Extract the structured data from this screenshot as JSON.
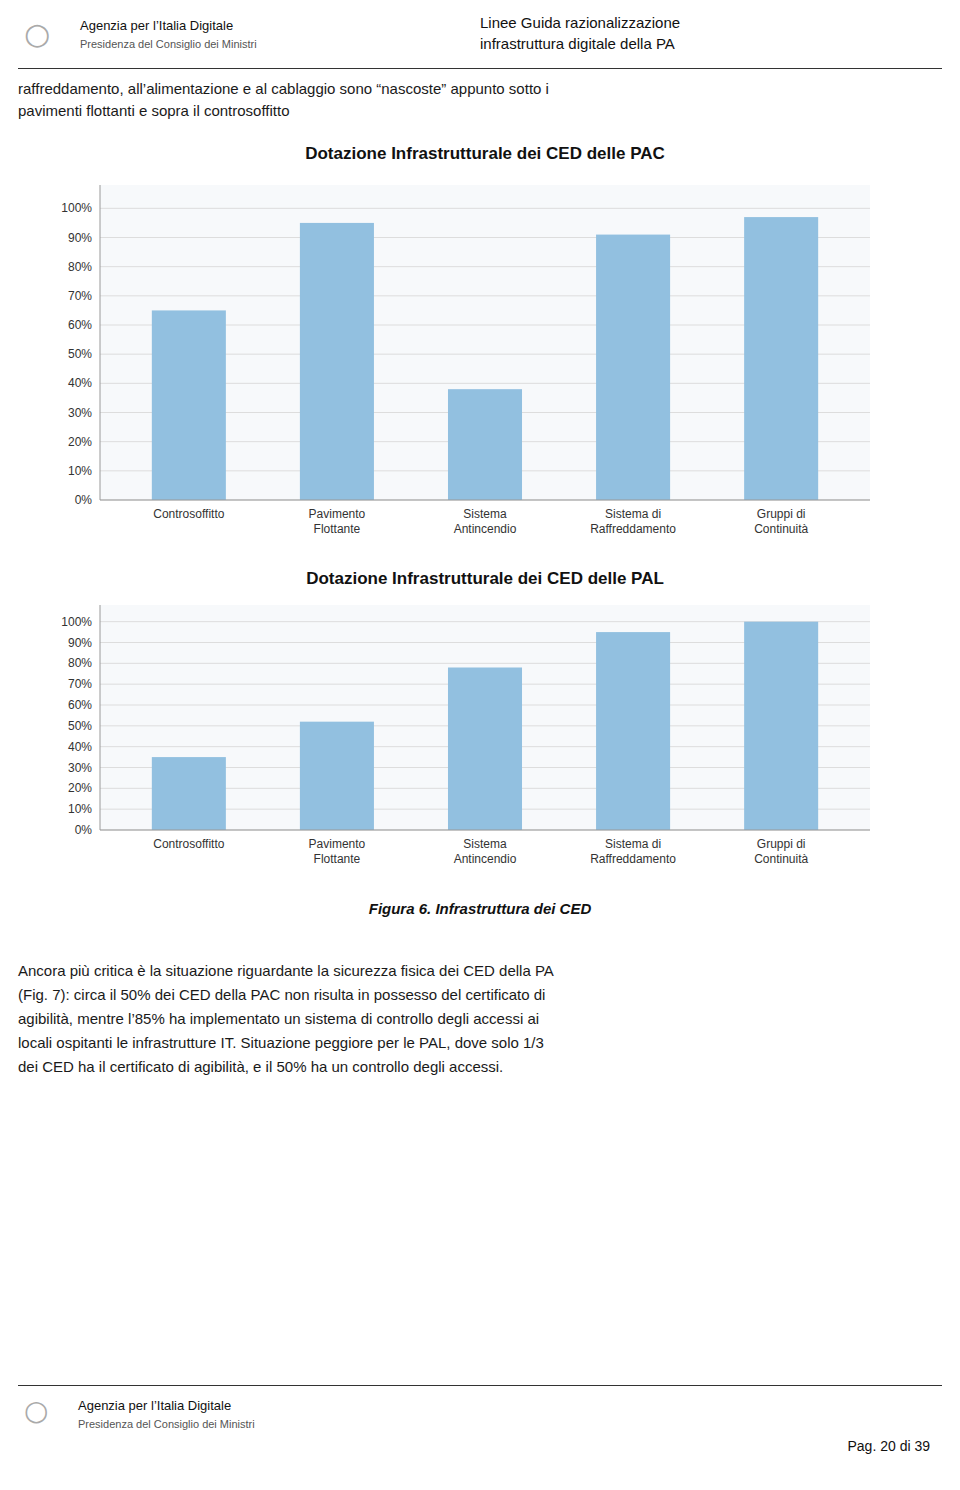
{
  "header": {
    "logo": "○",
    "org": "Agenzia per l’Italia Digitale",
    "sub": "Presidenza del Consiglio dei Ministri",
    "title_lines": [
      "Linee Guida razionalizzazione",
      "infrastruttura digitale della PA"
    ]
  },
  "intro": [
    "raffreddamento, all’alimentazione e al cablaggio sono “nascoste” appunto sotto i",
    "pavimenti flottanti e sopra il controsoffitto"
  ],
  "chart_data": [
    {
      "type": "bar",
      "title": "Dotazione Infrastrutturale dei CED delle PAC",
      "categories": [
        "Controsoffitto",
        "Pavimento\nFlottante",
        "Sistema\nAntincendio",
        "Sistema di\nRaffreddamento",
        "Gruppi di\nContinuità"
      ],
      "values": [
        0.65,
        0.95,
        0.38,
        0.91,
        0.97
      ],
      "color": "#92C0E0",
      "ylim": [
        0,
        1.08
      ],
      "yticks": [
        {
          "value": 0.0,
          "label": "0%"
        },
        {
          "value": 0.1,
          "label": "10%"
        },
        {
          "value": 0.2,
          "label": "20%"
        },
        {
          "value": 0.3,
          "label": "30%"
        },
        {
          "value": 0.4,
          "label": "40%"
        },
        {
          "value": 0.5,
          "label": "50%"
        },
        {
          "value": 0.6,
          "label": "60%"
        },
        {
          "value": 0.7,
          "label": "70%"
        },
        {
          "value": 0.8,
          "label": "80%"
        },
        {
          "value": 0.9,
          "label": "90%"
        },
        {
          "value": 1.0,
          "label": "100%"
        }
      ],
      "grid": true
    },
    {
      "type": "bar",
      "title": "Dotazione Infrastrutturale dei CED delle PAL",
      "categories": [
        "Controsoffitto",
        "Pavimento\nFlottante",
        "Sistema\nAntincendio",
        "Sistema di\nRaffreddamento",
        "Gruppi di\nContinuità"
      ],
      "values": [
        0.35,
        0.52,
        0.78,
        0.95,
        1.0
      ],
      "color": "#92C0E0",
      "ylim": [
        0,
        1.08
      ],
      "yticks": [
        {
          "value": 0.0,
          "label": "0%"
        },
        {
          "value": 0.1,
          "label": "10%"
        },
        {
          "value": 0.2,
          "label": "20%"
        },
        {
          "value": 0.3,
          "label": "30%"
        },
        {
          "value": 0.4,
          "label": "40%"
        },
        {
          "value": 0.5,
          "label": "50%"
        },
        {
          "value": 0.6,
          "label": "60%"
        },
        {
          "value": 0.7,
          "label": "70%"
        },
        {
          "value": 0.8,
          "label": "80%"
        },
        {
          "value": 0.9,
          "label": "90%"
        },
        {
          "value": 1.0,
          "label": "100%"
        }
      ],
      "grid": true
    }
  ],
  "caption": "Figura 6. Infrastruttura dei CED",
  "body": [
    "Ancora più critica è la situazione riguardante la sicurezza fisica dei CED della PA",
    "(Fig. 7): circa il 50% dei CED della PAC non risulta in possesso del certificato di",
    "agibilità, mentre l’85% ha implementato un sistema di controllo degli accessi ai",
    "locali ospitanti le infrastrutture IT. Situazione peggiore per le PAL, dove solo 1/3",
    "dei CED ha il certificato di agibilità, e il 50% ha un controllo degli accessi."
  ],
  "footer": {
    "logo": "○",
    "org": "Agenzia per l’Italia Digitale",
    "sub": "Presidenza del Consiglio dei Ministri",
    "page": "Pag. 20 di 39"
  }
}
